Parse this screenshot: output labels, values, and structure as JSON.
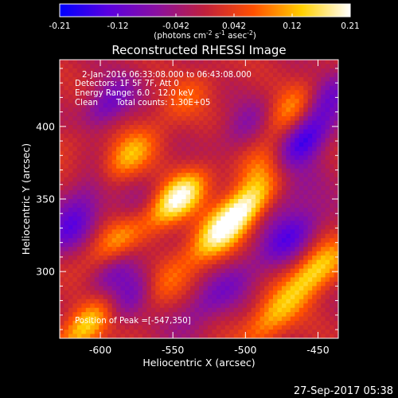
{
  "chart_data": {
    "type": "heatmap",
    "title": "Reconstructed RHESSI Image",
    "xlabel": "Heliocentric X (arcsec)",
    "ylabel": "Heliocentric Y (arcsec)",
    "xlim": [
      -628,
      -436
    ],
    "ylim": [
      254,
      446
    ],
    "xticks": [
      -600,
      -550,
      -500,
      -450
    ],
    "yticks": [
      300,
      350,
      400
    ],
    "colorbar": {
      "label_prefix": "(photons cm",
      "label_exp1": "-2",
      "label_mid1": " s",
      "label_exp2": "-1",
      "label_mid2": " asec",
      "label_exp3": "-2",
      "label_suffix": ")",
      "range": [
        -0.21,
        0.21
      ],
      "ticks": [
        "-0.21",
        "-0.12",
        "-0.042",
        "0.042",
        "0.12",
        "0.21"
      ],
      "colors": [
        "#0000ff",
        "#5a00e0",
        "#8a10a0",
        "#c0203c",
        "#ff5000",
        "#ffd000",
        "#ffffff"
      ]
    },
    "annotations": {
      "time_range": "2-Jan-2016 06:33:08.000 to 06:43:08.000",
      "detectors": "Detectors: 1F 5F 7F, Att 0",
      "energy": "Energy Range: 6.0 - 12.0 keV",
      "clean": "Clean",
      "total_counts": "Total counts: 1.30E+05",
      "peak": "Position of Peak =[-547,350]"
    },
    "peak": [
      -547,
      350
    ],
    "sources": [
      {
        "x": -547,
        "y": 350,
        "amp": 0.21
      },
      {
        "x": -502,
        "y": 343,
        "amp": 0.2
      },
      {
        "x": -582,
        "y": 378,
        "amp": 0.13
      },
      {
        "x": -522,
        "y": 322,
        "amp": 0.13
      },
      {
        "x": -610,
        "y": 400,
        "amp": 0.11
      },
      {
        "x": -590,
        "y": 320,
        "amp": 0.11
      },
      {
        "x": -610,
        "y": 262,
        "amp": 0.16
      },
      {
        "x": -560,
        "y": 290,
        "amp": 0.09
      },
      {
        "x": -486,
        "y": 375,
        "amp": 0.08
      },
      {
        "x": -468,
        "y": 412,
        "amp": 0.11
      },
      {
        "x": -452,
        "y": 300,
        "amp": 0.16
      },
      {
        "x": -482,
        "y": 268,
        "amp": 0.12
      },
      {
        "x": -540,
        "y": 420,
        "amp": 0.06
      },
      {
        "x": -470,
        "y": 350,
        "amp": -0.06
      },
      {
        "x": -610,
        "y": 355,
        "amp": -0.07
      },
      {
        "x": -575,
        "y": 345,
        "amp": -0.04
      },
      {
        "x": -600,
        "y": 410,
        "amp": -0.18
      },
      {
        "x": -578,
        "y": 282,
        "amp": -0.12
      },
      {
        "x": -590,
        "y": 300,
        "amp": -0.08
      },
      {
        "x": -468,
        "y": 325,
        "amp": -0.13
      },
      {
        "x": -460,
        "y": 390,
        "amp": -0.17
      },
      {
        "x": -445,
        "y": 420,
        "amp": -0.1
      },
      {
        "x": -530,
        "y": 275,
        "amp": -0.07
      },
      {
        "x": -500,
        "y": 400,
        "amp": -0.07
      },
      {
        "x": -620,
        "y": 330,
        "amp": -0.11
      },
      {
        "x": -505,
        "y": 295,
        "amp": -0.06
      }
    ]
  },
  "footer": {
    "timestamp": "27-Sep-2017 05:38"
  }
}
